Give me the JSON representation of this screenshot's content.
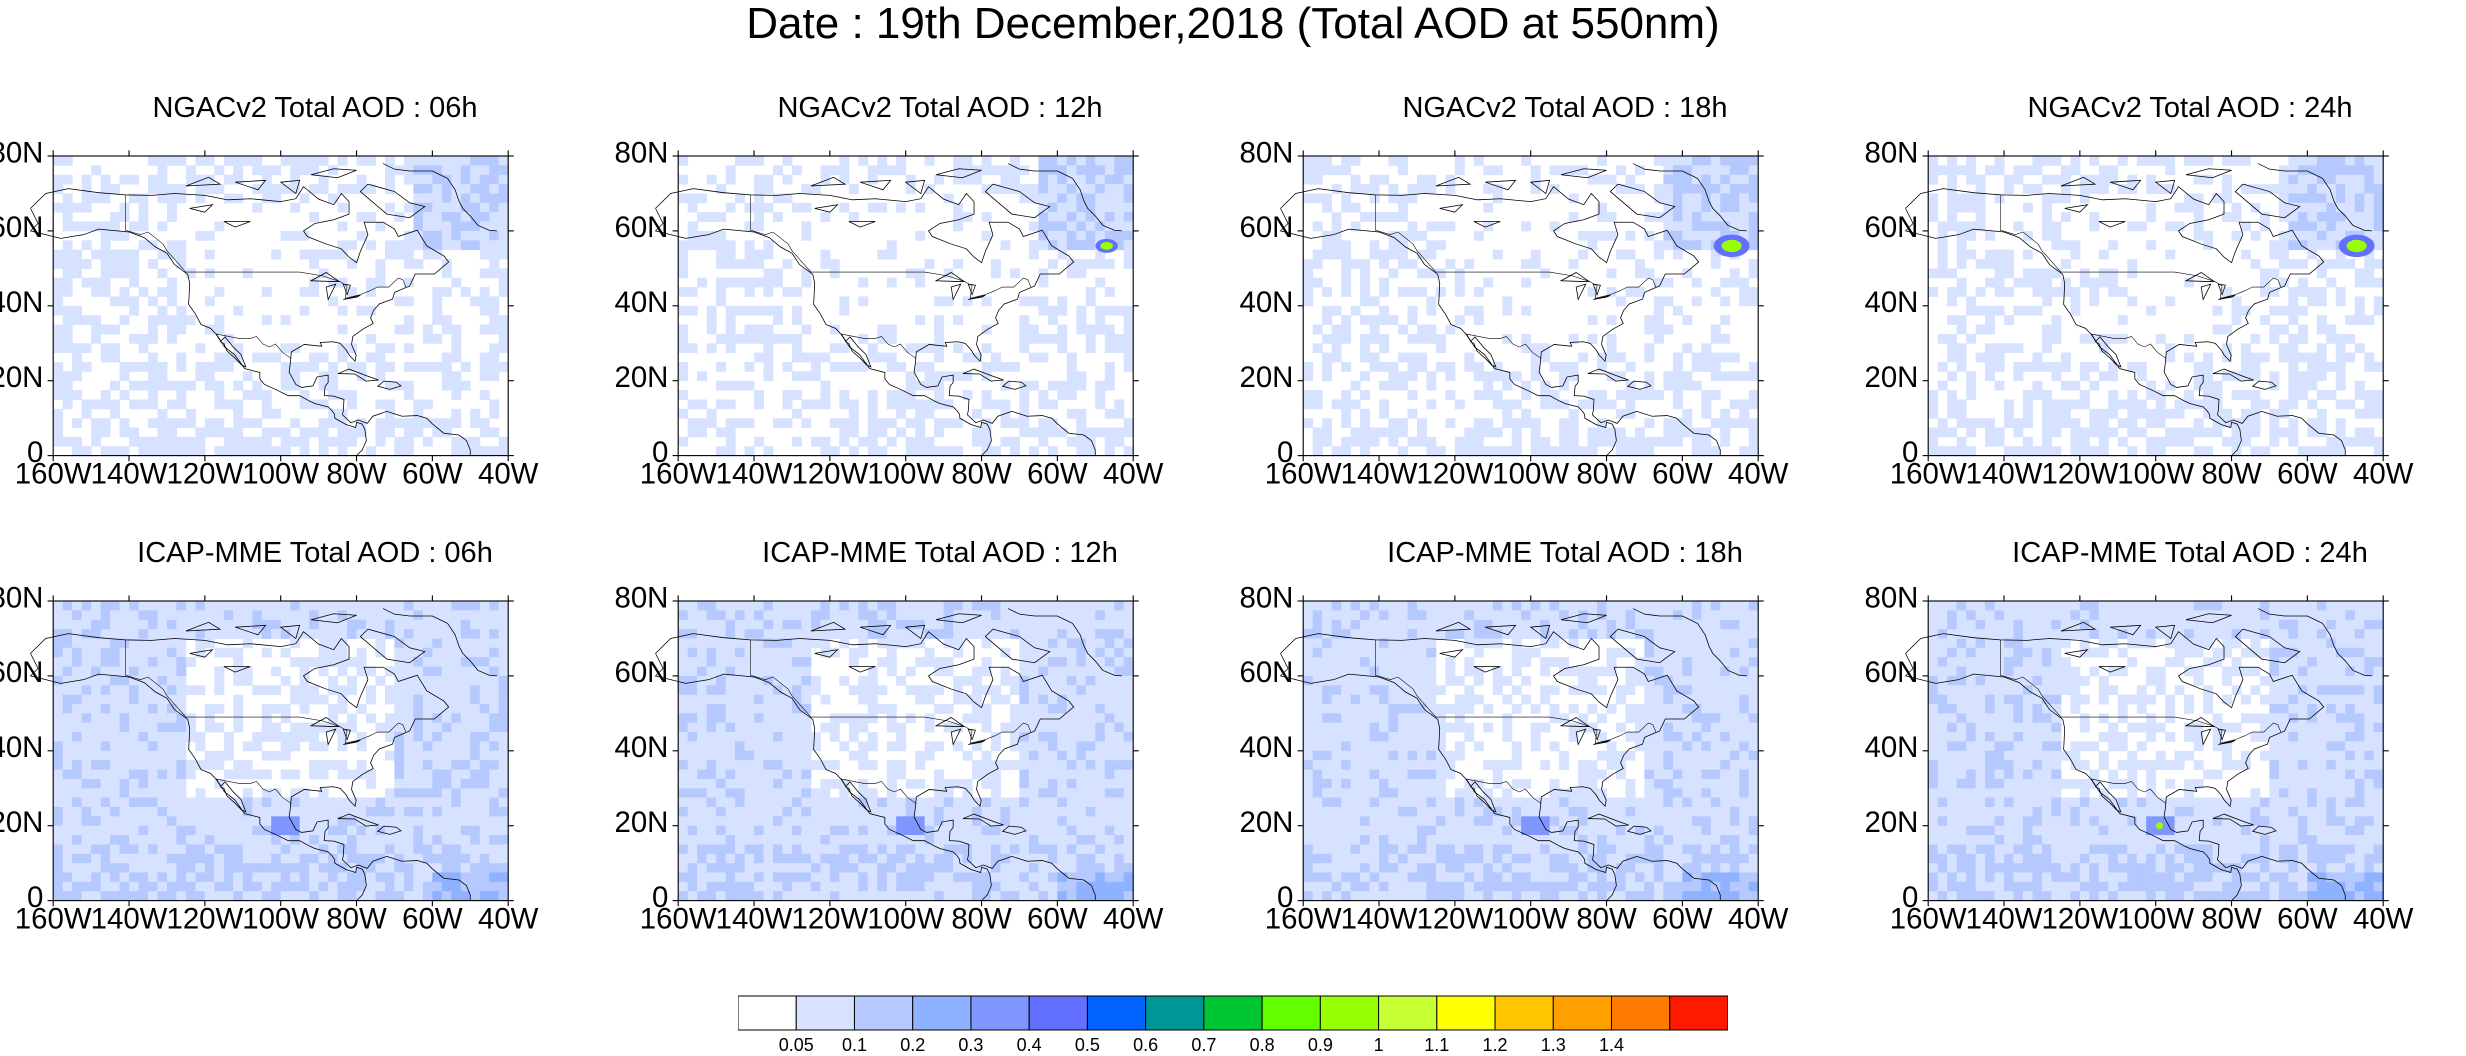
{
  "title": "Date : 19th December,2018 (Total AOD at 550nm)",
  "panels": [
    {
      "title": "NGACv2 Total AOD : 06h"
    },
    {
      "title": "NGACv2 Total AOD : 12h"
    },
    {
      "title": "NGACv2 Total AOD : 18h"
    },
    {
      "title": "NGACv2 Total AOD : 24h"
    },
    {
      "title": "ICAP-MME Total AOD : 06h"
    },
    {
      "title": "ICAP-MME Total AOD : 12h"
    },
    {
      "title": "ICAP-MME Total AOD : 18h"
    },
    {
      "title": "ICAP-MME Total AOD : 24h"
    }
  ],
  "axes": {
    "lat_ticks": [
      "80N",
      "60N",
      "40N",
      "20N",
      "0"
    ],
    "lon_ticks": [
      "160W",
      "140W",
      "120W",
      "100W",
      "80W",
      "60W",
      "40W"
    ]
  },
  "colorbar": {
    "colors": [
      "#ffffff",
      "#d6e2ff",
      "#b5c9ff",
      "#8eb2ff",
      "#7f96ff",
      "#6370ff",
      "#0063ff",
      "#009696",
      "#00c633",
      "#63ff00",
      "#96ff00",
      "#c6ff33",
      "#ffff00",
      "#ffc600",
      "#ffa000",
      "#ff7c00",
      "#ff1900"
    ],
    "labels": [
      "0.05",
      "0.1",
      "0.2",
      "0.3",
      "0.4",
      "0.5",
      "0.6",
      "0.7",
      "0.8",
      "0.9",
      "1",
      "1.1",
      "1.2",
      "1.3",
      "1.4"
    ]
  }
}
